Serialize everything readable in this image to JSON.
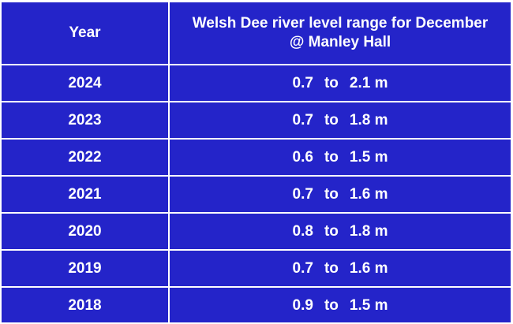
{
  "table": {
    "headers": {
      "year": "Year",
      "range_line1": "Welsh Dee river level range for December",
      "range_line2": "@ Manley Hall"
    },
    "rows": [
      {
        "year": "2024",
        "low": "0.7",
        "to": "to",
        "high": "2.1 m"
      },
      {
        "year": "2023",
        "low": "0.7",
        "to": "to",
        "high": "1.8 m"
      },
      {
        "year": "2022",
        "low": "0.6",
        "to": "to",
        "high": "1.5 m"
      },
      {
        "year": "2021",
        "low": "0.7",
        "to": "to",
        "high": "1.6 m"
      },
      {
        "year": "2020",
        "low": "0.8",
        "to": "to",
        "high": "1.8 m"
      },
      {
        "year": "2019",
        "low": "0.7",
        "to": "to",
        "high": "1.6 m"
      },
      {
        "year": "2018",
        "low": "0.9",
        "to": "to",
        "high": "1.5 m"
      }
    ]
  },
  "colors": {
    "background": "#2424c9",
    "text": "#ffffff",
    "border": "#ffffff"
  }
}
